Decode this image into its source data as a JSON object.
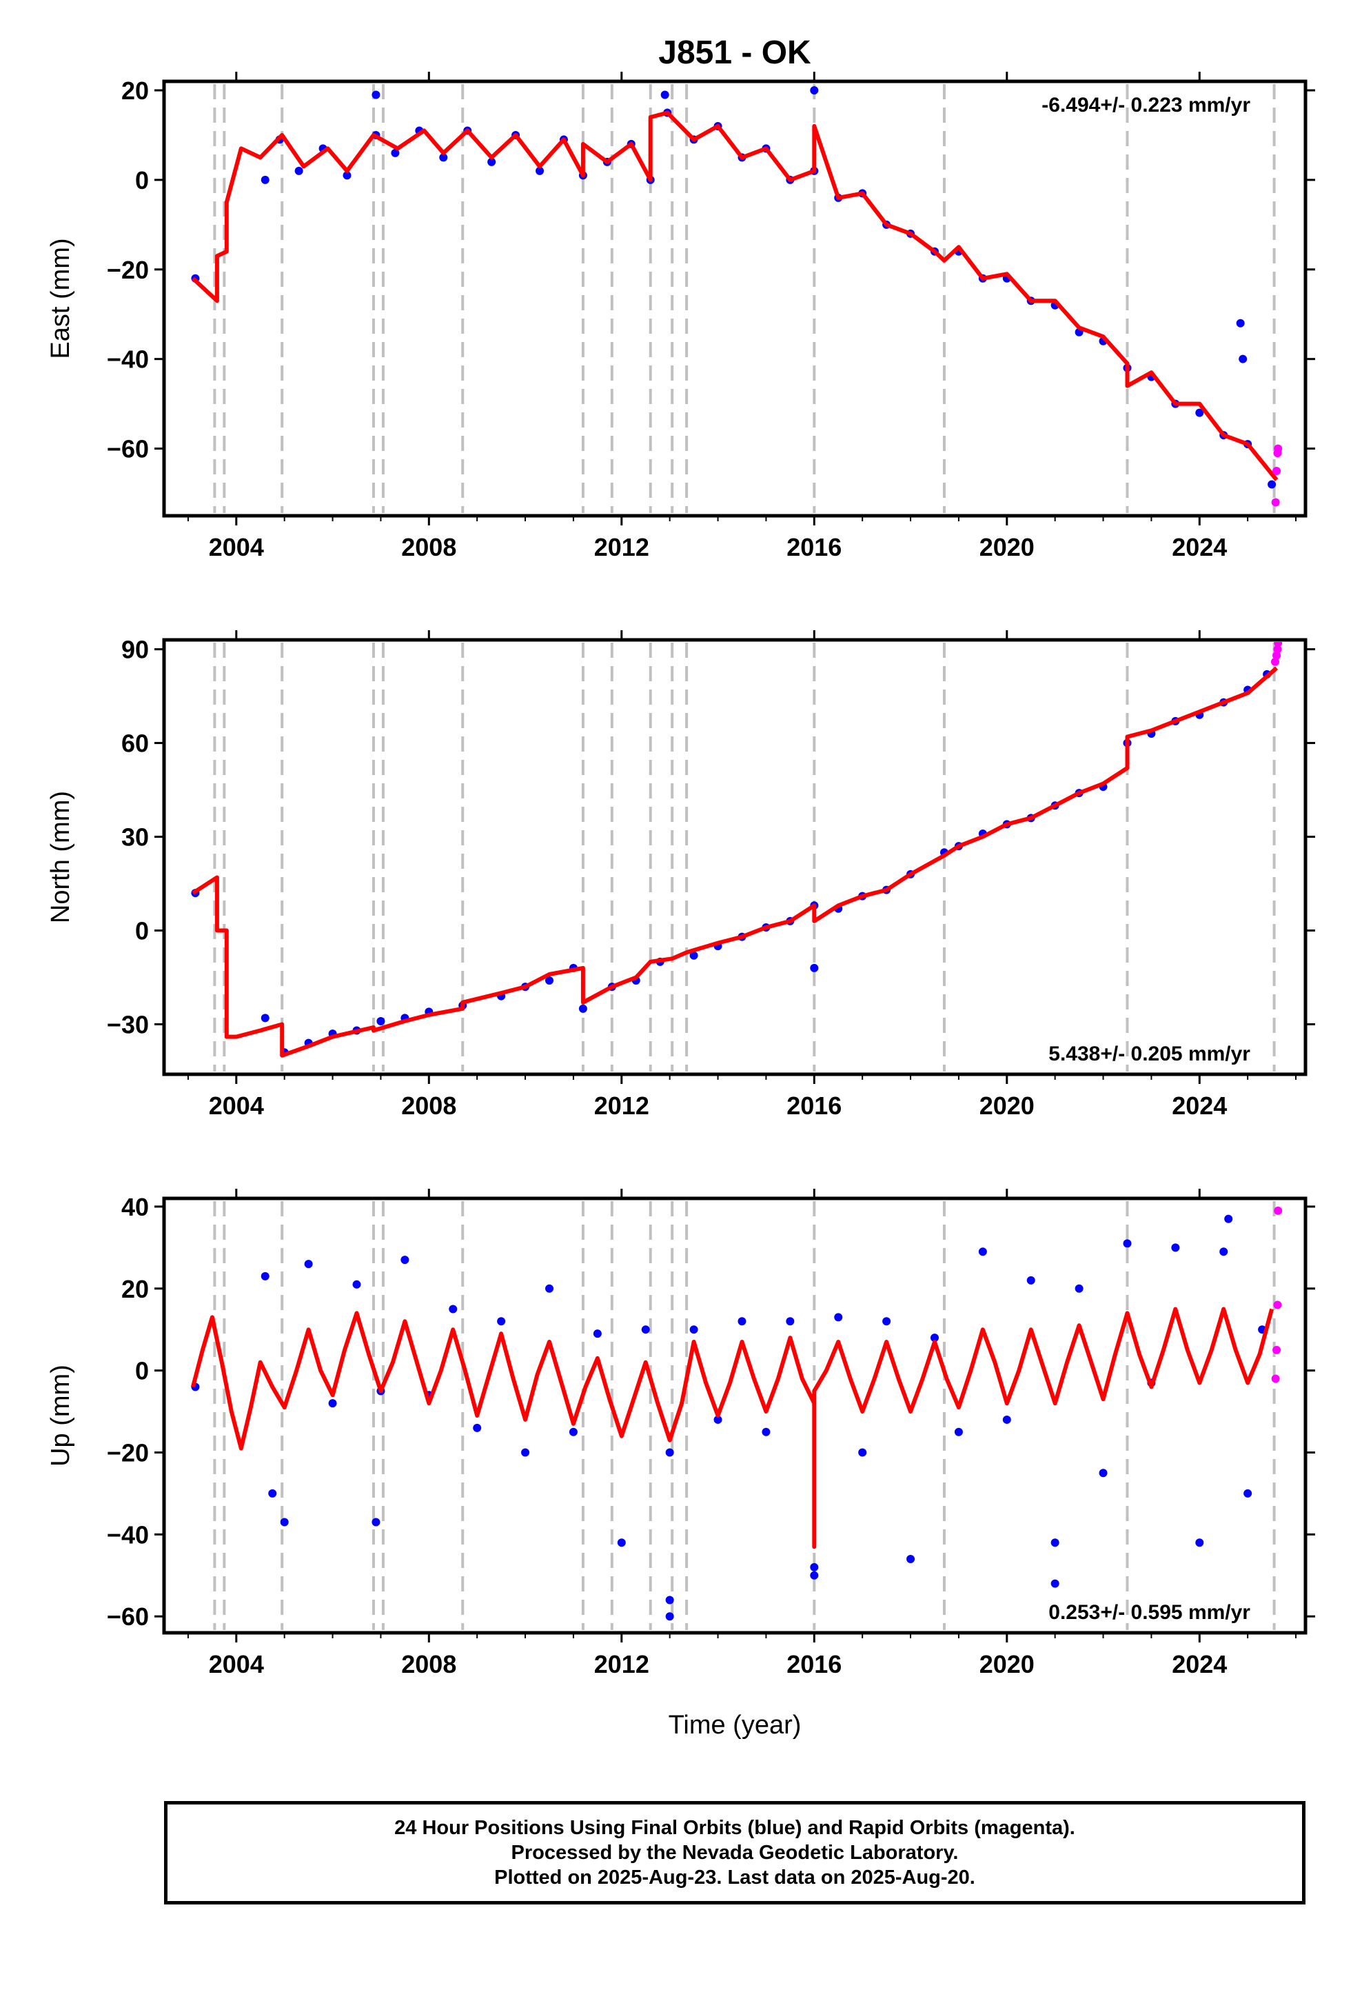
{
  "title": "J851 - OK",
  "xlabel": "Time (year)",
  "caption": [
    "24 Hour Positions Using Final Orbits (blue) and Rapid Orbits (magenta).",
    "Processed by the Nevada Geodetic Laboratory.",
    "Plotted on 2025-Aug-23. Last data on 2025-Aug-20."
  ],
  "colors": {
    "final": "#0000ff",
    "rapid": "#ff00ff",
    "model": "#ff0000",
    "events": "#c0c0c0"
  },
  "chart_data": [
    {
      "type": "scatter",
      "panel": "east",
      "ylabel": "East (mm)",
      "xlim": [
        2002.5,
        2026.2
      ],
      "ylim": [
        -75,
        22
      ],
      "xticks": [
        2004,
        2008,
        2012,
        2016,
        2020,
        2024
      ],
      "yticks": [
        20,
        0,
        -20,
        -40,
        -60
      ],
      "rate_label": "-6.494+/- 0.223 mm/yr",
      "rate_position": "top-right",
      "event_lines": [
        2003.55,
        2003.75,
        2004.95,
        2006.85,
        2007.05,
        2008.7,
        2011.2,
        2011.8,
        2012.6,
        2013.05,
        2013.35,
        2016.0,
        2018.7,
        2022.5,
        2025.55
      ],
      "model_line": {
        "x": [
          2003.1,
          2003.6,
          2003.6,
          2003.8,
          2003.8,
          2004.1,
          2004.5,
          2004.95,
          2005.4,
          2005.9,
          2006.3,
          2006.85,
          2007.35,
          2007.9,
          2008.3,
          2008.8,
          2009.3,
          2009.8,
          2010.3,
          2010.8,
          2011.2,
          2011.2,
          2011.7,
          2012.2,
          2012.6,
          2012.6,
          2012.95,
          2013.5,
          2014.0,
          2014.5,
          2015.0,
          2015.5,
          2016.0,
          2016.0,
          2016.5,
          2017.0,
          2017.5,
          2018.0,
          2018.5,
          2018.7,
          2019.0,
          2019.5,
          2020.0,
          2020.5,
          2021.0,
          2021.5,
          2022.0,
          2022.5,
          2022.5,
          2023.0,
          2023.5,
          2024.0,
          2024.5,
          2025.0,
          2025.6
        ],
        "y": [
          -22,
          -27,
          -17,
          -16,
          -5,
          7,
          5,
          10,
          3,
          7,
          2,
          10,
          7,
          11,
          6,
          11,
          5,
          10,
          3,
          9,
          1,
          8,
          4,
          8,
          0,
          14,
          15,
          9,
          12,
          5,
          7,
          0,
          2,
          12,
          -4,
          -3,
          -10,
          -12,
          -16,
          -18,
          -15,
          -22,
          -21,
          -27,
          -27,
          -33,
          -35,
          -41,
          -46,
          -43,
          -50,
          -50,
          -57,
          -59,
          -67
        ]
      },
      "final_points": {
        "x": [
          2003.15,
          2004.6,
          2004.9,
          2005.3,
          2005.8,
          2006.3,
          2006.9,
          2006.9,
          2007.3,
          2007.8,
          2008.3,
          2008.8,
          2009.3,
          2009.8,
          2010.3,
          2010.8,
          2011.2,
          2011.7,
          2012.2,
          2012.6,
          2012.9,
          2012.95,
          2013.5,
          2014.0,
          2014.5,
          2015.0,
          2015.5,
          2016.0,
          2016.0,
          2016.5,
          2017.0,
          2017.5,
          2018.0,
          2018.5,
          2019.0,
          2019.5,
          2020.0,
          2020.5,
          2021.0,
          2021.5,
          2022.0,
          2022.5,
          2023.0,
          2023.5,
          2024.0,
          2024.5,
          2024.85,
          2024.9,
          2025.0,
          2025.5
        ],
        "y": [
          -22,
          0,
          9,
          2,
          7,
          1,
          19,
          10,
          6,
          11,
          5,
          11,
          4,
          10,
          2,
          9,
          1,
          4,
          8,
          0,
          19,
          15,
          9,
          12,
          5,
          7,
          0,
          20,
          2,
          -4,
          -3,
          -10,
          -12,
          -16,
          -16,
          -22,
          -22,
          -27,
          -28,
          -34,
          -36,
          -42,
          -44,
          -50,
          -52,
          -57,
          -32,
          -40,
          -59,
          -68
        ]
      },
      "rapid_points": {
        "x": [
          2025.58,
          2025.6,
          2025.62,
          2025.63
        ],
        "y": [
          -72,
          -65,
          -61,
          -60
        ]
      }
    },
    {
      "type": "scatter",
      "panel": "north",
      "ylabel": "North (mm)",
      "xlim": [
        2002.5,
        2026.2
      ],
      "ylim": [
        -46,
        93
      ],
      "xticks": [
        2004,
        2008,
        2012,
        2016,
        2020,
        2024
      ],
      "yticks": [
        90,
        60,
        30,
        0,
        -30
      ],
      "rate_label": "5.438+/- 0.205 mm/yr",
      "rate_position": "bottom-right",
      "event_lines": [
        2003.55,
        2003.75,
        2004.95,
        2006.85,
        2007.05,
        2008.7,
        2011.2,
        2011.8,
        2012.6,
        2013.05,
        2013.35,
        2016.0,
        2018.7,
        2022.5,
        2025.55
      ],
      "model_line": {
        "x": [
          2003.1,
          2003.6,
          2003.6,
          2003.8,
          2003.8,
          2004.0,
          2004.5,
          2004.95,
          2004.95,
          2005.5,
          2006.0,
          2006.85,
          2006.85,
          2007.5,
          2008.0,
          2008.7,
          2008.7,
          2009.5,
          2010.0,
          2010.5,
          2011.2,
          2011.2,
          2011.8,
          2012.3,
          2012.6,
          2013.05,
          2013.35,
          2014.0,
          2014.5,
          2015.0,
          2015.5,
          2016.0,
          2016.0,
          2016.5,
          2017.0,
          2017.5,
          2018.0,
          2018.7,
          2019.0,
          2019.5,
          2020.0,
          2020.5,
          2021.0,
          2021.5,
          2022.0,
          2022.5,
          2022.5,
          2023.0,
          2023.5,
          2024.0,
          2024.5,
          2025.0,
          2025.6
        ],
        "y": [
          12,
          17,
          0,
          0,
          -34,
          -34,
          -32,
          -30,
          -40,
          -37,
          -34,
          -31,
          -32,
          -29,
          -27,
          -25,
          -23,
          -20,
          -18,
          -14,
          -12,
          -23,
          -18,
          -15,
          -10,
          -9,
          -7,
          -4,
          -2,
          1,
          3,
          8,
          3,
          8,
          11,
          13,
          18,
          24,
          27,
          30,
          34,
          36,
          40,
          44,
          47,
          52,
          62,
          64,
          67,
          70,
          73,
          76,
          84
        ]
      },
      "final_points": {
        "x": [
          2003.15,
          2004.6,
          2005.0,
          2005.5,
          2006.0,
          2006.5,
          2007.0,
          2007.5,
          2008.0,
          2008.7,
          2009.5,
          2010.0,
          2010.5,
          2011.0,
          2011.2,
          2011.8,
          2012.3,
          2012.8,
          2013.5,
          2014.0,
          2014.5,
          2015.0,
          2015.5,
          2016.0,
          2016.0,
          2016.5,
          2017.0,
          2017.5,
          2018.0,
          2018.7,
          2019.0,
          2019.5,
          2020.0,
          2020.5,
          2021.0,
          2021.5,
          2022.0,
          2022.5,
          2023.0,
          2023.5,
          2024.0,
          2024.5,
          2025.0,
          2025.4
        ],
        "y": [
          12,
          -28,
          -39,
          -36,
          -33,
          -32,
          -29,
          -28,
          -26,
          -24,
          -21,
          -18,
          -16,
          -12,
          -25,
          -18,
          -16,
          -10,
          -8,
          -5,
          -2,
          1,
          3,
          8,
          -12,
          7,
          11,
          13,
          18,
          25,
          27,
          31,
          34,
          36,
          40,
          44,
          46,
          60,
          63,
          67,
          69,
          73,
          77,
          82
        ]
      },
      "rapid_points": {
        "x": [
          2025.57,
          2025.6,
          2025.62,
          2025.63
        ],
        "y": [
          86,
          88,
          90,
          92
        ]
      }
    },
    {
      "type": "scatter",
      "panel": "up",
      "ylabel": "Up (mm)",
      "xlim": [
        2002.5,
        2026.2
      ],
      "ylim": [
        -64,
        42
      ],
      "xticks": [
        2004,
        2008,
        2012,
        2016,
        2020,
        2024
      ],
      "yticks": [
        40,
        20,
        0,
        -20,
        -40,
        -60
      ],
      "rate_label": "0.253+/- 0.595 mm/yr",
      "rate_position": "bottom-right",
      "event_lines": [
        2003.55,
        2003.75,
        2004.95,
        2006.85,
        2007.05,
        2008.7,
        2011.2,
        2011.8,
        2012.6,
        2013.05,
        2013.35,
        2016.0,
        2018.7,
        2022.5,
        2025.55
      ],
      "model_line": {
        "x": [
          2003.1,
          2003.3,
          2003.5,
          2003.7,
          2003.9,
          2004.1,
          2004.3,
          2004.5,
          2004.75,
          2005.0,
          2005.25,
          2005.5,
          2005.75,
          2006.0,
          2006.25,
          2006.5,
          2006.75,
          2007.0,
          2007.25,
          2007.5,
          2007.75,
          2008.0,
          2008.25,
          2008.5,
          2008.75,
          2009.0,
          2009.25,
          2009.5,
          2009.75,
          2010.0,
          2010.25,
          2010.5,
          2010.75,
          2011.0,
          2011.25,
          2011.5,
          2011.75,
          2012.0,
          2012.25,
          2012.5,
          2012.75,
          2013.0,
          2013.25,
          2013.5,
          2013.75,
          2014.0,
          2014.25,
          2014.5,
          2014.75,
          2015.0,
          2015.25,
          2015.5,
          2015.75,
          2016.0,
          2016.0,
          2016.0,
          2016.25,
          2016.5,
          2016.75,
          2017.0,
          2017.25,
          2017.5,
          2017.75,
          2018.0,
          2018.25,
          2018.5,
          2018.75,
          2019.0,
          2019.25,
          2019.5,
          2019.75,
          2020.0,
          2020.25,
          2020.5,
          2020.75,
          2021.0,
          2021.25,
          2021.5,
          2021.75,
          2022.0,
          2022.25,
          2022.5,
          2022.75,
          2023.0,
          2023.25,
          2023.5,
          2023.75,
          2024.0,
          2024.25,
          2024.5,
          2024.75,
          2025.0,
          2025.25,
          2025.5
        ],
        "y": [
          -4,
          5,
          13,
          2,
          -10,
          -19,
          -9,
          2,
          -4,
          -9,
          0,
          10,
          0,
          -6,
          5,
          14,
          4,
          -5,
          2,
          12,
          2,
          -8,
          0,
          10,
          0,
          -11,
          -1,
          9,
          -2,
          -12,
          -1,
          7,
          -3,
          -13,
          -4,
          3,
          -7,
          -16,
          -7,
          2,
          -8,
          -17,
          -8,
          7,
          -3,
          -11,
          -3,
          7,
          -2,
          -10,
          -2,
          8,
          -2,
          -8,
          -43,
          -5,
          0,
          7,
          -2,
          -10,
          -2,
          7,
          -2,
          -10,
          -2,
          7,
          -2,
          -9,
          0,
          10,
          2,
          -8,
          0,
          10,
          1,
          -8,
          2,
          11,
          2,
          -7,
          4,
          14,
          4,
          -4,
          5,
          15,
          5,
          -3,
          5,
          15,
          5,
          -3,
          4,
          15
        ]
      },
      "final_points": {
        "x": [
          2003.15,
          2004.6,
          2004.75,
          2005.0,
          2005.5,
          2006.0,
          2006.5,
          2006.9,
          2007.0,
          2007.5,
          2008.0,
          2008.5,
          2009.0,
          2009.5,
          2010.0,
          2010.5,
          2011.0,
          2011.5,
          2012.0,
          2012.5,
          2013.0,
          2013.0,
          2013.0,
          2013.5,
          2014.0,
          2014.5,
          2015.0,
          2015.5,
          2016.0,
          2016.0,
          2016.5,
          2017.0,
          2017.5,
          2018.0,
          2018.5,
          2019.0,
          2019.5,
          2020.0,
          2020.5,
          2021.0,
          2021.0,
          2021.5,
          2022.0,
          2022.5,
          2023.0,
          2023.5,
          2024.0,
          2024.5,
          2024.6,
          2025.0,
          2025.3
        ],
        "y": [
          -4,
          23,
          -30,
          -37,
          26,
          -8,
          21,
          -37,
          -5,
          27,
          -6,
          15,
          -14,
          12,
          -20,
          20,
          -15,
          9,
          -42,
          10,
          -60,
          -56,
          -20,
          10,
          -12,
          12,
          -15,
          12,
          -50,
          -48,
          13,
          -20,
          12,
          -46,
          8,
          -15,
          29,
          -12,
          22,
          -42,
          -52,
          20,
          -25,
          31,
          -3,
          30,
          -42,
          29,
          37,
          -30,
          10
        ]
      },
      "rapid_points": {
        "x": [
          2025.58,
          2025.6,
          2025.62,
          2025.63
        ],
        "y": [
          -2,
          5,
          16,
          39
        ]
      }
    }
  ]
}
